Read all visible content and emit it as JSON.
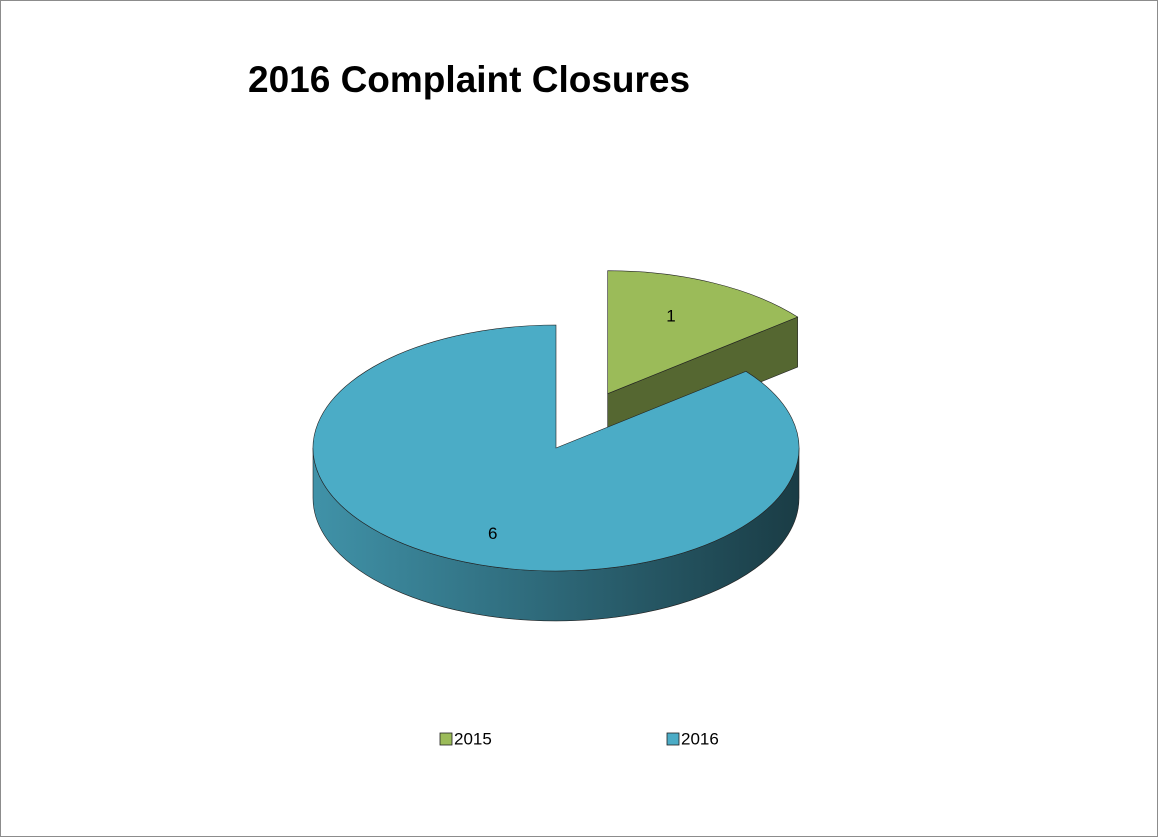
{
  "chart_data": {
    "type": "pie3d",
    "title": "2016 Complaint Closures",
    "categories": [
      "2015",
      "2016"
    ],
    "values": [
      1,
      6
    ],
    "colors": [
      "#9bbb59",
      "#4bacc6"
    ],
    "legend": "bottom"
  }
}
